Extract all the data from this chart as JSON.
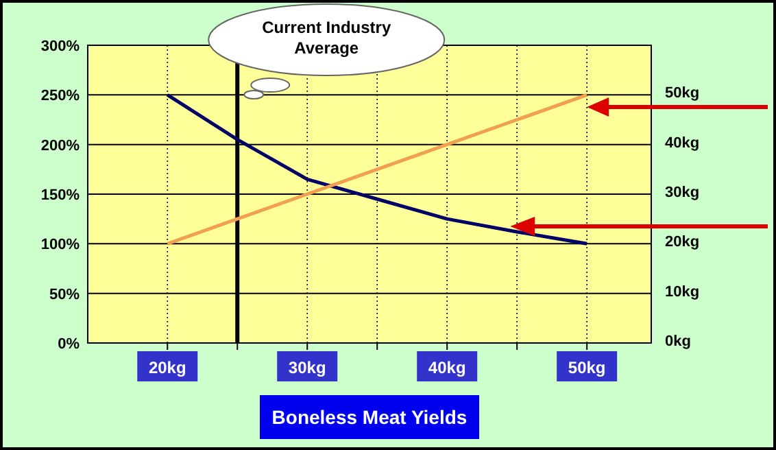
{
  "chart_data": {
    "type": "line",
    "xlabel": "Boneless Meat Yields",
    "x": [
      20,
      25,
      30,
      35,
      40,
      45,
      50
    ],
    "xlim": [
      14.3,
      54.6
    ],
    "xticks": [
      {
        "value": 20,
        "label": "20kg"
      },
      {
        "value": 25,
        "label": null
      },
      {
        "value": 30,
        "label": "30kg"
      },
      {
        "value": 35,
        "label": null
      },
      {
        "value": 40,
        "label": "40kg"
      },
      {
        "value": 45,
        "label": null
      },
      {
        "value": 50,
        "label": "50kg"
      }
    ],
    "ylim": [
      0,
      300
    ],
    "yticks": [
      {
        "value": 0,
        "label": "0%"
      },
      {
        "value": 50,
        "label": "50%"
      },
      {
        "value": 100,
        "label": "100%"
      },
      {
        "value": 150,
        "label": "150%"
      },
      {
        "value": 200,
        "label": "200%"
      },
      {
        "value": 250,
        "label": "250%"
      },
      {
        "value": 300,
        "label": "300%"
      }
    ],
    "y2lim": [
      0,
      60
    ],
    "y2ticks": [
      {
        "value": 0,
        "label": "0kg"
      },
      {
        "value": 10,
        "label": "10kg"
      },
      {
        "value": 20,
        "label": "20kg"
      },
      {
        "value": 30,
        "label": "30kg"
      },
      {
        "value": 40,
        "label": "40kg"
      },
      {
        "value": 50,
        "label": "50kg"
      }
    ],
    "series": [
      {
        "color": "#000066",
        "values": [
          250,
          205,
          165,
          145,
          125,
          112,
          100
        ]
      },
      {
        "color": "#f0a050",
        "axis": "y2",
        "values": [
          20,
          25,
          30,
          35,
          40,
          45,
          50
        ]
      }
    ],
    "ref_lines": [
      {
        "axis": "x",
        "value": 25,
        "label": "Current Industry Average",
        "color": "#000000"
      }
    ],
    "grid": true,
    "marker": "none",
    "line_style": "solid"
  }
}
